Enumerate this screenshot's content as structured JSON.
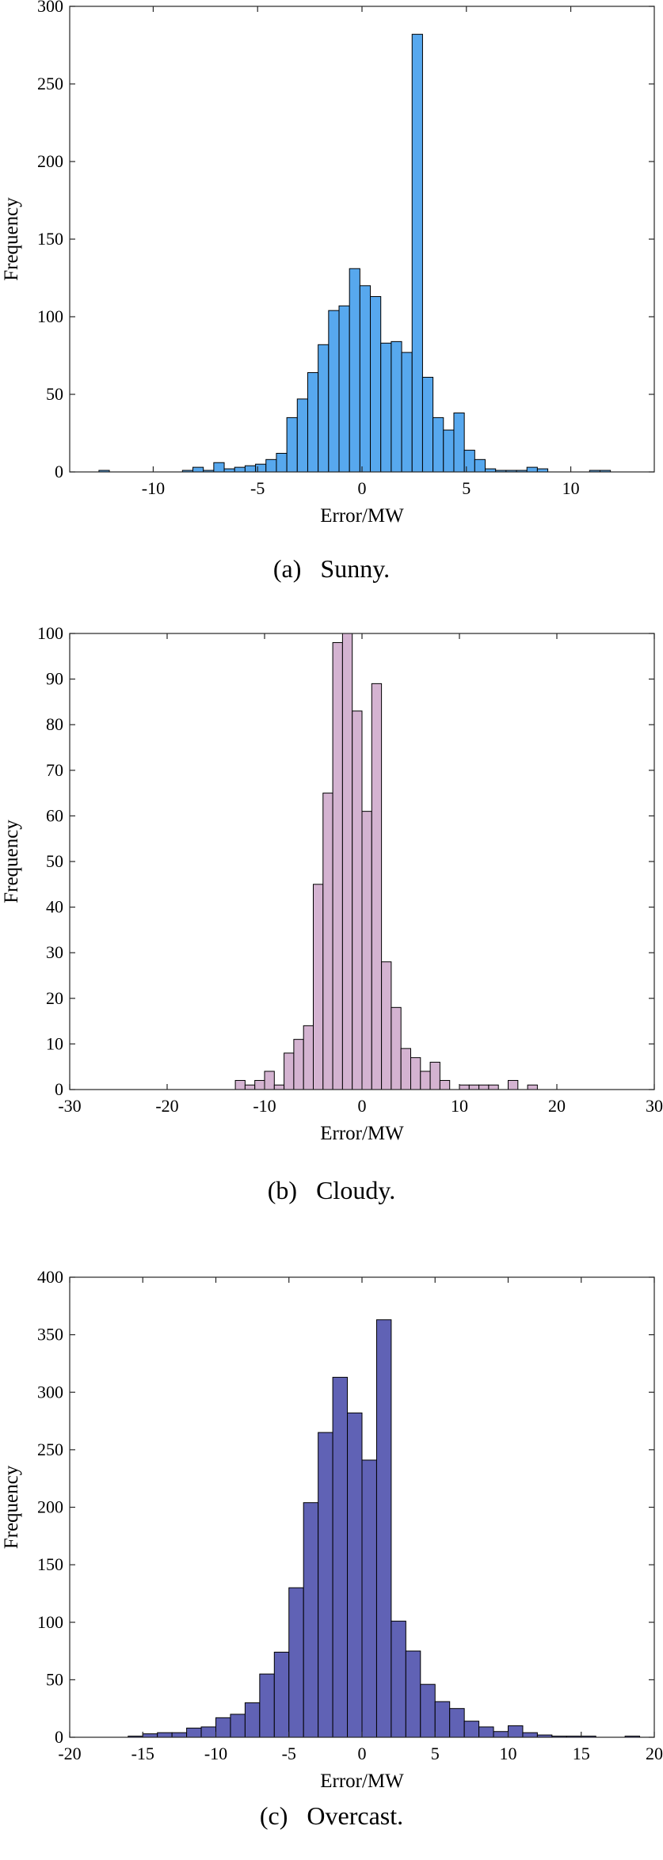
{
  "captions": [
    "(a)   Sunny.",
    "(b)   Cloudy.",
    "(c)   Overcast."
  ],
  "chart_data": [
    {
      "type": "bar",
      "xlabel": "Error/MW",
      "ylabel": "Frequency",
      "xlim": [
        -14,
        14
      ],
      "ylim": [
        0,
        300
      ],
      "xticks": [
        -10,
        -5,
        0,
        5,
        10
      ],
      "yticks": [
        0,
        50,
        100,
        150,
        200,
        250,
        300
      ],
      "bin_start": -12.6,
      "bin_width": 0.5,
      "color": "#57a8ee",
      "values": [
        1,
        0,
        0,
        0,
        0,
        0,
        0,
        0,
        1,
        3,
        1,
        6,
        2,
        3,
        4,
        5,
        8,
        12,
        35,
        47,
        64,
        82,
        104,
        107,
        131,
        120,
        113,
        83,
        84,
        77,
        282,
        61,
        35,
        27,
        38,
        14,
        8,
        2,
        1,
        1,
        1,
        3,
        2,
        0,
        0,
        0,
        0,
        1,
        1
      ]
    },
    {
      "type": "bar",
      "xlabel": "Error/MW",
      "ylabel": "Frequency",
      "xlim": [
        -30,
        30
      ],
      "ylim": [
        0,
        100
      ],
      "xticks": [
        -30,
        -20,
        -10,
        0,
        10,
        20,
        30
      ],
      "yticks": [
        0,
        10,
        20,
        30,
        40,
        50,
        60,
        70,
        80,
        90,
        100
      ],
      "bin_start": -13,
      "bin_width": 1,
      "color": "#d4b3d1",
      "values": [
        2,
        1,
        2,
        4,
        1,
        8,
        11,
        14,
        45,
        65,
        98,
        100,
        83,
        61,
        89,
        28,
        18,
        9,
        7,
        4,
        6,
        2,
        0,
        1,
        1,
        1,
        1,
        0,
        2,
        0,
        1
      ]
    },
    {
      "type": "bar",
      "xlabel": "Error/MW",
      "ylabel": "Frequency",
      "xlim": [
        -20,
        20
      ],
      "ylim": [
        0,
        400
      ],
      "xticks": [
        -20,
        -15,
        -10,
        -5,
        0,
        5,
        10,
        15,
        20
      ],
      "yticks": [
        0,
        50,
        100,
        150,
        200,
        250,
        300,
        350,
        400
      ],
      "bin_start": -16,
      "bin_width": 1,
      "color": "#6062b5",
      "values": [
        1,
        3,
        4,
        4,
        8,
        9,
        17,
        20,
        30,
        55,
        74,
        130,
        204,
        265,
        313,
        282,
        241,
        363,
        101,
        75,
        46,
        31,
        25,
        14,
        9,
        5,
        10,
        4,
        2,
        1,
        1,
        1,
        0,
        0,
        1
      ]
    }
  ]
}
